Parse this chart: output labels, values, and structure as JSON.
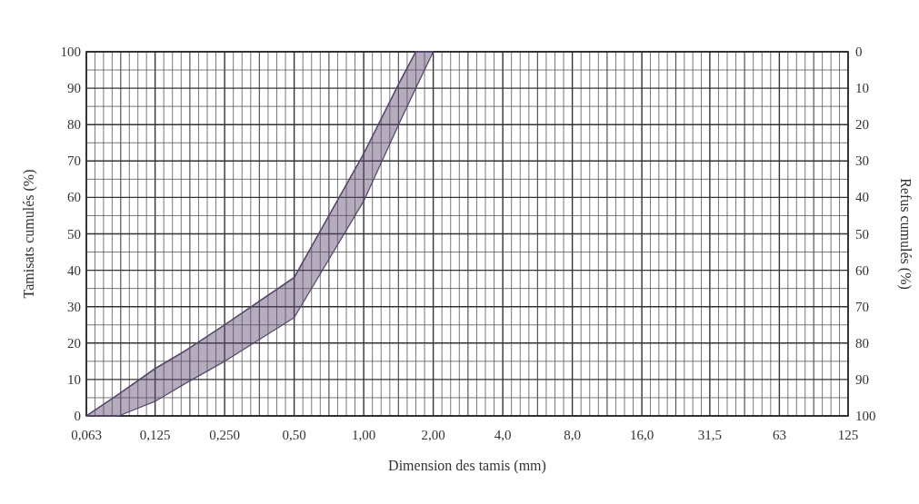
{
  "chart_data": {
    "type": "line",
    "xlabel": "Dimension des tamis (mm)",
    "ylabel": "Tamisats cumulés (%)",
    "y2label": "Refus cumulés (%)",
    "log": "x",
    "grid": true,
    "xlim": [
      0.063,
      125
    ],
    "xticks": [
      {
        "value": 0.063,
        "label": "0,063"
      },
      {
        "value": 0.125,
        "label": "0,125"
      },
      {
        "value": 0.25,
        "label": "0,250"
      },
      {
        "value": 0.5,
        "label": "0,50"
      },
      {
        "value": 1,
        "label": "1,00"
      },
      {
        "value": 2,
        "label": "2,00"
      },
      {
        "value": 4,
        "label": "4,0"
      },
      {
        "value": 8,
        "label": "8,0"
      },
      {
        "value": 16,
        "label": "16,0"
      },
      {
        "value": 31.5,
        "label": "31,5"
      },
      {
        "value": 63,
        "label": "63"
      },
      {
        "value": 125,
        "label": "125"
      }
    ],
    "ylim": [
      0,
      100
    ],
    "yticks": [
      0,
      10,
      20,
      30,
      40,
      50,
      60,
      70,
      80,
      90,
      100
    ],
    "y2lim": [
      100,
      0
    ],
    "y2ticks": [
      0,
      10,
      20,
      30,
      40,
      50,
      60,
      70,
      80,
      90,
      100
    ],
    "series": [
      {
        "color": "#5a4a6e",
        "x": [
          0.063,
          0.087,
          0.125,
          0.17,
          0.25,
          0.5,
          1.0,
          1.44,
          1.68,
          2.0
        ],
        "values": [
          0,
          6,
          13,
          18,
          25,
          38,
          72,
          92,
          100,
          100
        ],
        "upper": [
          0,
          6,
          13,
          18,
          25,
          38,
          72,
          92,
          100,
          100
        ],
        "lower": [
          0,
          0,
          4,
          9,
          15,
          27,
          59,
          81,
          90,
          100
        ]
      }
    ]
  }
}
